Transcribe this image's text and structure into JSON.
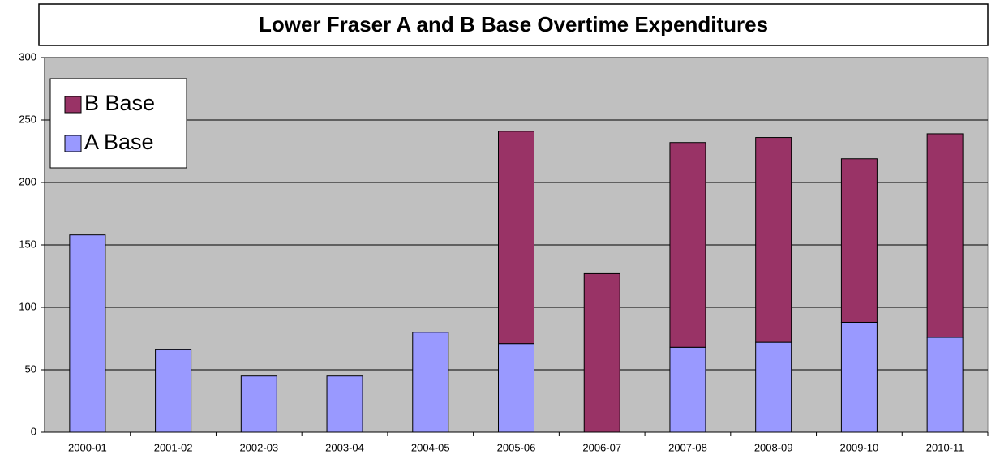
{
  "chart_data": {
    "type": "bar",
    "stacked": true,
    "title": "Lower Fraser A and B Base Overtime Expenditures",
    "categories": [
      "2000-01",
      "2001-02",
      "2002-03",
      "2003-04",
      "2004-05",
      "2005-06",
      "2006-07",
      "2007-08",
      "2008-09",
      "2009-10",
      "2010-11"
    ],
    "series": [
      {
        "name": "A Base",
        "color": "#9999ff",
        "values": [
          158,
          66,
          45,
          45,
          80,
          71,
          0,
          68,
          72,
          88,
          76
        ]
      },
      {
        "name": "B Base",
        "color": "#993366",
        "values": [
          0,
          0,
          0,
          0,
          0,
          170,
          127,
          164,
          164,
          131,
          163
        ]
      }
    ],
    "ylim": [
      0,
      300
    ],
    "yticks": [
      0,
      50,
      100,
      150,
      200,
      250,
      300
    ],
    "grid": true,
    "legend": "upper left"
  }
}
